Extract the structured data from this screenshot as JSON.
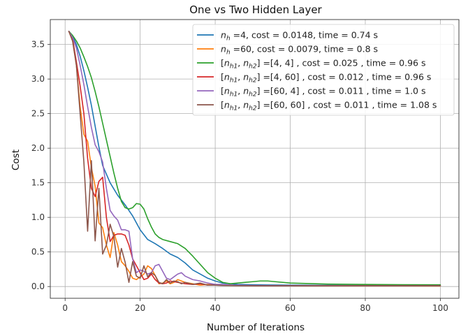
{
  "chart_data": {
    "type": "line",
    "title": "One vs Two Hidden Layer",
    "xlabel": "Number of Iterations",
    "ylabel": "Cost",
    "xlim": [
      -3.95,
      104.95
    ],
    "ylim": [
      -0.17,
      3.86
    ],
    "xticks": [
      "0",
      "20",
      "40",
      "60",
      "80",
      "100"
    ],
    "yticks": [
      "0.0",
      "0.5",
      "1.0",
      "1.5",
      "2.0",
      "2.5",
      "3.0",
      "3.5"
    ],
    "grid": true,
    "legend_position": "top-right",
    "series": [
      {
        "name": "$n_h$ =4, cost  = 0.0148, time = 0.74 s",
        "legend_parts": [
          {
            "t": "n",
            "s": "n"
          },
          {
            "t": "h",
            "s": "sub"
          },
          {
            "t": " =4, cost  = 0.0148, time = 0.74 s",
            "s": "r"
          }
        ],
        "color": "#1f77b4",
        "x": [
          1,
          2,
          3,
          4,
          5,
          6,
          7,
          8,
          9,
          10,
          12,
          14,
          16,
          18,
          20,
          22,
          24,
          26,
          28,
          30,
          32,
          34,
          36,
          38,
          40,
          42,
          44,
          46,
          50,
          60,
          70,
          80,
          90,
          100
        ],
        "y": [
          3.69,
          3.62,
          3.5,
          3.33,
          3.12,
          2.88,
          2.62,
          2.32,
          2.02,
          1.75,
          1.5,
          1.32,
          1.18,
          1.02,
          0.82,
          0.68,
          0.62,
          0.55,
          0.47,
          0.42,
          0.34,
          0.24,
          0.18,
          0.12,
          0.08,
          0.05,
          0.04,
          0.03,
          0.025,
          0.02,
          0.018,
          0.016,
          0.015,
          0.0148
        ]
      },
      {
        "name": "$n_h$ =60, cost  = 0.0079, time = 0.8 s",
        "legend_parts": [
          {
            "t": "n",
            "s": "n"
          },
          {
            "t": "h",
            "s": "sub"
          },
          {
            "t": " =60, cost  = 0.0079, time = 0.8 s",
            "s": "r"
          }
        ],
        "color": "#ff7f0e",
        "x": [
          1,
          2,
          3,
          4,
          5,
          6,
          7,
          8,
          9,
          10,
          11,
          12,
          13,
          14,
          15,
          16,
          17,
          18,
          19,
          20,
          21,
          22,
          23,
          24,
          25,
          26,
          27,
          28,
          29,
          30,
          32,
          34,
          36,
          38,
          40,
          42,
          45,
          50,
          60,
          70,
          80,
          90,
          100
        ],
        "y": [
          3.69,
          3.55,
          3.2,
          2.6,
          2.2,
          2.1,
          1.72,
          1.45,
          0.92,
          0.85,
          0.6,
          0.42,
          0.78,
          0.6,
          0.36,
          0.3,
          0.22,
          0.12,
          0.1,
          0.14,
          0.18,
          0.3,
          0.26,
          0.16,
          0.04,
          0.05,
          0.08,
          0.04,
          0.06,
          0.1,
          0.06,
          0.04,
          0.02,
          0.03,
          0.02,
          0.02,
          0.015,
          0.012,
          0.01,
          0.009,
          0.008,
          0.008,
          0.0079
        ]
      },
      {
        "name": "$[n_{h1}, n_{h2}]$ =[4, 4] , cost  = 0.025 , time = 0.96 s",
        "legend_parts": [
          {
            "t": "[",
            "s": "r"
          },
          {
            "t": "n",
            "s": "n"
          },
          {
            "t": "h1",
            "s": "sub"
          },
          {
            "t": ", ",
            "s": "r"
          },
          {
            "t": "n",
            "s": "n"
          },
          {
            "t": "h2",
            "s": "sub"
          },
          {
            "t": "] =[4, 4] , cost  = 0.025 , time = 0.96 s",
            "s": "r"
          }
        ],
        "color": "#2ca02c",
        "x": [
          1,
          2,
          3,
          4,
          5,
          6,
          7,
          8,
          9,
          10,
          11,
          12,
          13,
          14,
          15,
          16,
          17,
          18,
          19,
          20,
          21,
          22,
          23,
          24,
          25,
          26,
          28,
          30,
          32,
          34,
          36,
          38,
          40,
          42,
          44,
          46,
          48,
          50,
          52,
          54,
          56,
          60,
          70,
          80,
          90,
          100
        ],
        "y": [
          3.69,
          3.63,
          3.55,
          3.45,
          3.32,
          3.18,
          3.02,
          2.82,
          2.6,
          2.36,
          2.12,
          1.88,
          1.64,
          1.42,
          1.23,
          1.14,
          1.12,
          1.14,
          1.2,
          1.19,
          1.12,
          0.98,
          0.86,
          0.76,
          0.71,
          0.68,
          0.65,
          0.62,
          0.55,
          0.44,
          0.32,
          0.2,
          0.12,
          0.06,
          0.04,
          0.05,
          0.06,
          0.07,
          0.08,
          0.08,
          0.07,
          0.05,
          0.035,
          0.03,
          0.027,
          0.025
        ]
      },
      {
        "name": "$[n_{h1}, n_{h2}]$ =[4, 60] , cost  = 0.012 , time = 0.96 s",
        "legend_parts": [
          {
            "t": "[",
            "s": "r"
          },
          {
            "t": "n",
            "s": "n"
          },
          {
            "t": "h1",
            "s": "sub"
          },
          {
            "t": ", ",
            "s": "r"
          },
          {
            "t": "n",
            "s": "n"
          },
          {
            "t": "h2",
            "s": "sub"
          },
          {
            "t": "] =[4, 60] , cost  = 0.012 , time = 0.96 s",
            "s": "r"
          }
        ],
        "color": "#d62728",
        "x": [
          1,
          2,
          3,
          4,
          5,
          6,
          7,
          8,
          9,
          10,
          11,
          12,
          13,
          14,
          15,
          16,
          17,
          18,
          19,
          20,
          21,
          22,
          23,
          24,
          25,
          26,
          27,
          28,
          30,
          32,
          34,
          36,
          38,
          40,
          45,
          50,
          60,
          70,
          80,
          90,
          100
        ],
        "y": [
          3.69,
          3.58,
          3.25,
          2.9,
          2.5,
          1.85,
          1.42,
          1.3,
          1.52,
          1.58,
          1.0,
          0.65,
          0.74,
          0.76,
          0.76,
          0.74,
          0.6,
          0.4,
          0.3,
          0.2,
          0.1,
          0.12,
          0.18,
          0.1,
          0.05,
          0.04,
          0.05,
          0.08,
          0.06,
          0.04,
          0.03,
          0.04,
          0.02,
          0.02,
          0.015,
          0.013,
          0.012,
          0.012,
          0.012,
          0.012,
          0.012
        ]
      },
      {
        "name": "$[n_{h1}, n_{h2}]$ =[60, 4] , cost  = 0.011 , time = 1.0 s",
        "legend_parts": [
          {
            "t": "[",
            "s": "r"
          },
          {
            "t": "n",
            "s": "n"
          },
          {
            "t": "h1",
            "s": "sub"
          },
          {
            "t": ", ",
            "s": "r"
          },
          {
            "t": "n",
            "s": "n"
          },
          {
            "t": "h2",
            "s": "sub"
          },
          {
            "t": "] =[60, 4] , cost  = 0.011 , time = 1.0 s",
            "s": "r"
          }
        ],
        "color": "#9467bd",
        "x": [
          1,
          2,
          3,
          4,
          5,
          6,
          7,
          8,
          9,
          10,
          11,
          12,
          13,
          14,
          15,
          16,
          17,
          18,
          19,
          20,
          21,
          22,
          23,
          24,
          25,
          26,
          27,
          28,
          29,
          30,
          31,
          32,
          34,
          36,
          38,
          40,
          42,
          45,
          50,
          60,
          70,
          80,
          90,
          100
        ],
        "y": [
          3.69,
          3.6,
          3.45,
          3.2,
          2.92,
          2.6,
          2.3,
          2.05,
          1.95,
          1.8,
          1.42,
          1.1,
          1.02,
          0.96,
          0.82,
          0.82,
          0.8,
          0.4,
          0.2,
          0.24,
          0.22,
          0.18,
          0.2,
          0.3,
          0.32,
          0.22,
          0.12,
          0.1,
          0.14,
          0.18,
          0.2,
          0.15,
          0.1,
          0.08,
          0.05,
          0.03,
          0.03,
          0.02,
          0.015,
          0.012,
          0.011,
          0.011,
          0.011,
          0.011
        ]
      },
      {
        "name": "$[n_{h1}, n_{h2}]$ =[60, 60] , cost  = 0.011 , time = 1.08 s",
        "legend_parts": [
          {
            "t": "[",
            "s": "r"
          },
          {
            "t": "n",
            "s": "n"
          },
          {
            "t": "h1",
            "s": "sub"
          },
          {
            "t": ", ",
            "s": "r"
          },
          {
            "t": "n",
            "s": "n"
          },
          {
            "t": "h2",
            "s": "sub"
          },
          {
            "t": "] =[60, 60] , cost  = 0.011 , time = 1.08 s",
            "s": "r"
          }
        ],
        "color": "#8c564b",
        "x": [
          1,
          2,
          3,
          4,
          5,
          6,
          7,
          8,
          9,
          10,
          11,
          12,
          13,
          14,
          15,
          16,
          17,
          18,
          19,
          20,
          21,
          22,
          23,
          24,
          25,
          26,
          27,
          28,
          29,
          30,
          31,
          32,
          34,
          36,
          38,
          40,
          42,
          45,
          50,
          60,
          70,
          80,
          90,
          100
        ],
        "y": [
          3.69,
          3.55,
          3.2,
          2.5,
          1.8,
          0.8,
          1.82,
          0.66,
          1.42,
          0.47,
          0.6,
          0.9,
          0.72,
          0.28,
          0.55,
          0.35,
          0.06,
          0.36,
          0.15,
          0.12,
          0.3,
          0.14,
          0.2,
          0.16,
          0.06,
          0.04,
          0.1,
          0.05,
          0.08,
          0.07,
          0.04,
          0.06,
          0.03,
          0.05,
          0.02,
          0.02,
          0.015,
          0.012,
          0.011,
          0.011,
          0.011,
          0.011,
          0.011,
          0.011
        ]
      }
    ]
  }
}
